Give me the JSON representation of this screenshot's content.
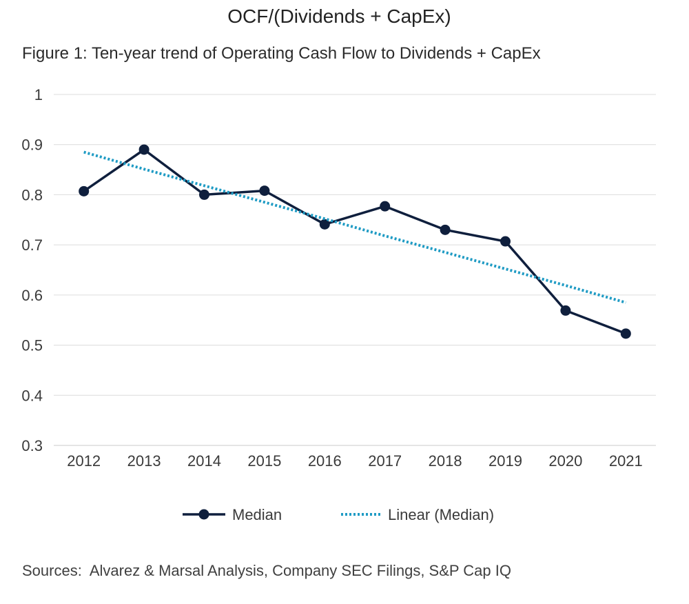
{
  "chart_data": {
    "type": "line",
    "title": "OCF/(Dividends + CapEx)",
    "subtitle": "Figure 1: Ten-year trend of Operating Cash Flow to Dividends + CapEx",
    "xlabel": "",
    "ylabel": "",
    "categories": [
      "2012",
      "2013",
      "2014",
      "2015",
      "2016",
      "2017",
      "2018",
      "2019",
      "2020",
      "2021"
    ],
    "ylim": [
      0.3,
      1
    ],
    "yticks": [
      0.3,
      0.4,
      0.5,
      0.6,
      0.7,
      0.8,
      0.9,
      1
    ],
    "ytick_labels": [
      "0.3",
      "0.4",
      "0.5",
      "0.6",
      "0.7",
      "0.8",
      "0.9",
      "1"
    ],
    "grid": true,
    "legend_position": "bottom-center",
    "series": [
      {
        "name": "Median",
        "style": "solid-markers",
        "color": "#0f1f3d",
        "values": [
          0.807,
          0.89,
          0.8,
          0.808,
          0.741,
          0.777,
          0.73,
          0.707,
          0.569,
          0.523
        ]
      },
      {
        "name": "Linear (Median)",
        "style": "dotted",
        "color": "#1f9bc4",
        "values": [
          0.885,
          0.851,
          0.818,
          0.785,
          0.752,
          0.718,
          0.685,
          0.652,
          0.619,
          0.585
        ]
      }
    ],
    "source": "Sources:  Alvarez & Marsal Analysis, Company SEC Filings, S&P Cap IQ"
  }
}
